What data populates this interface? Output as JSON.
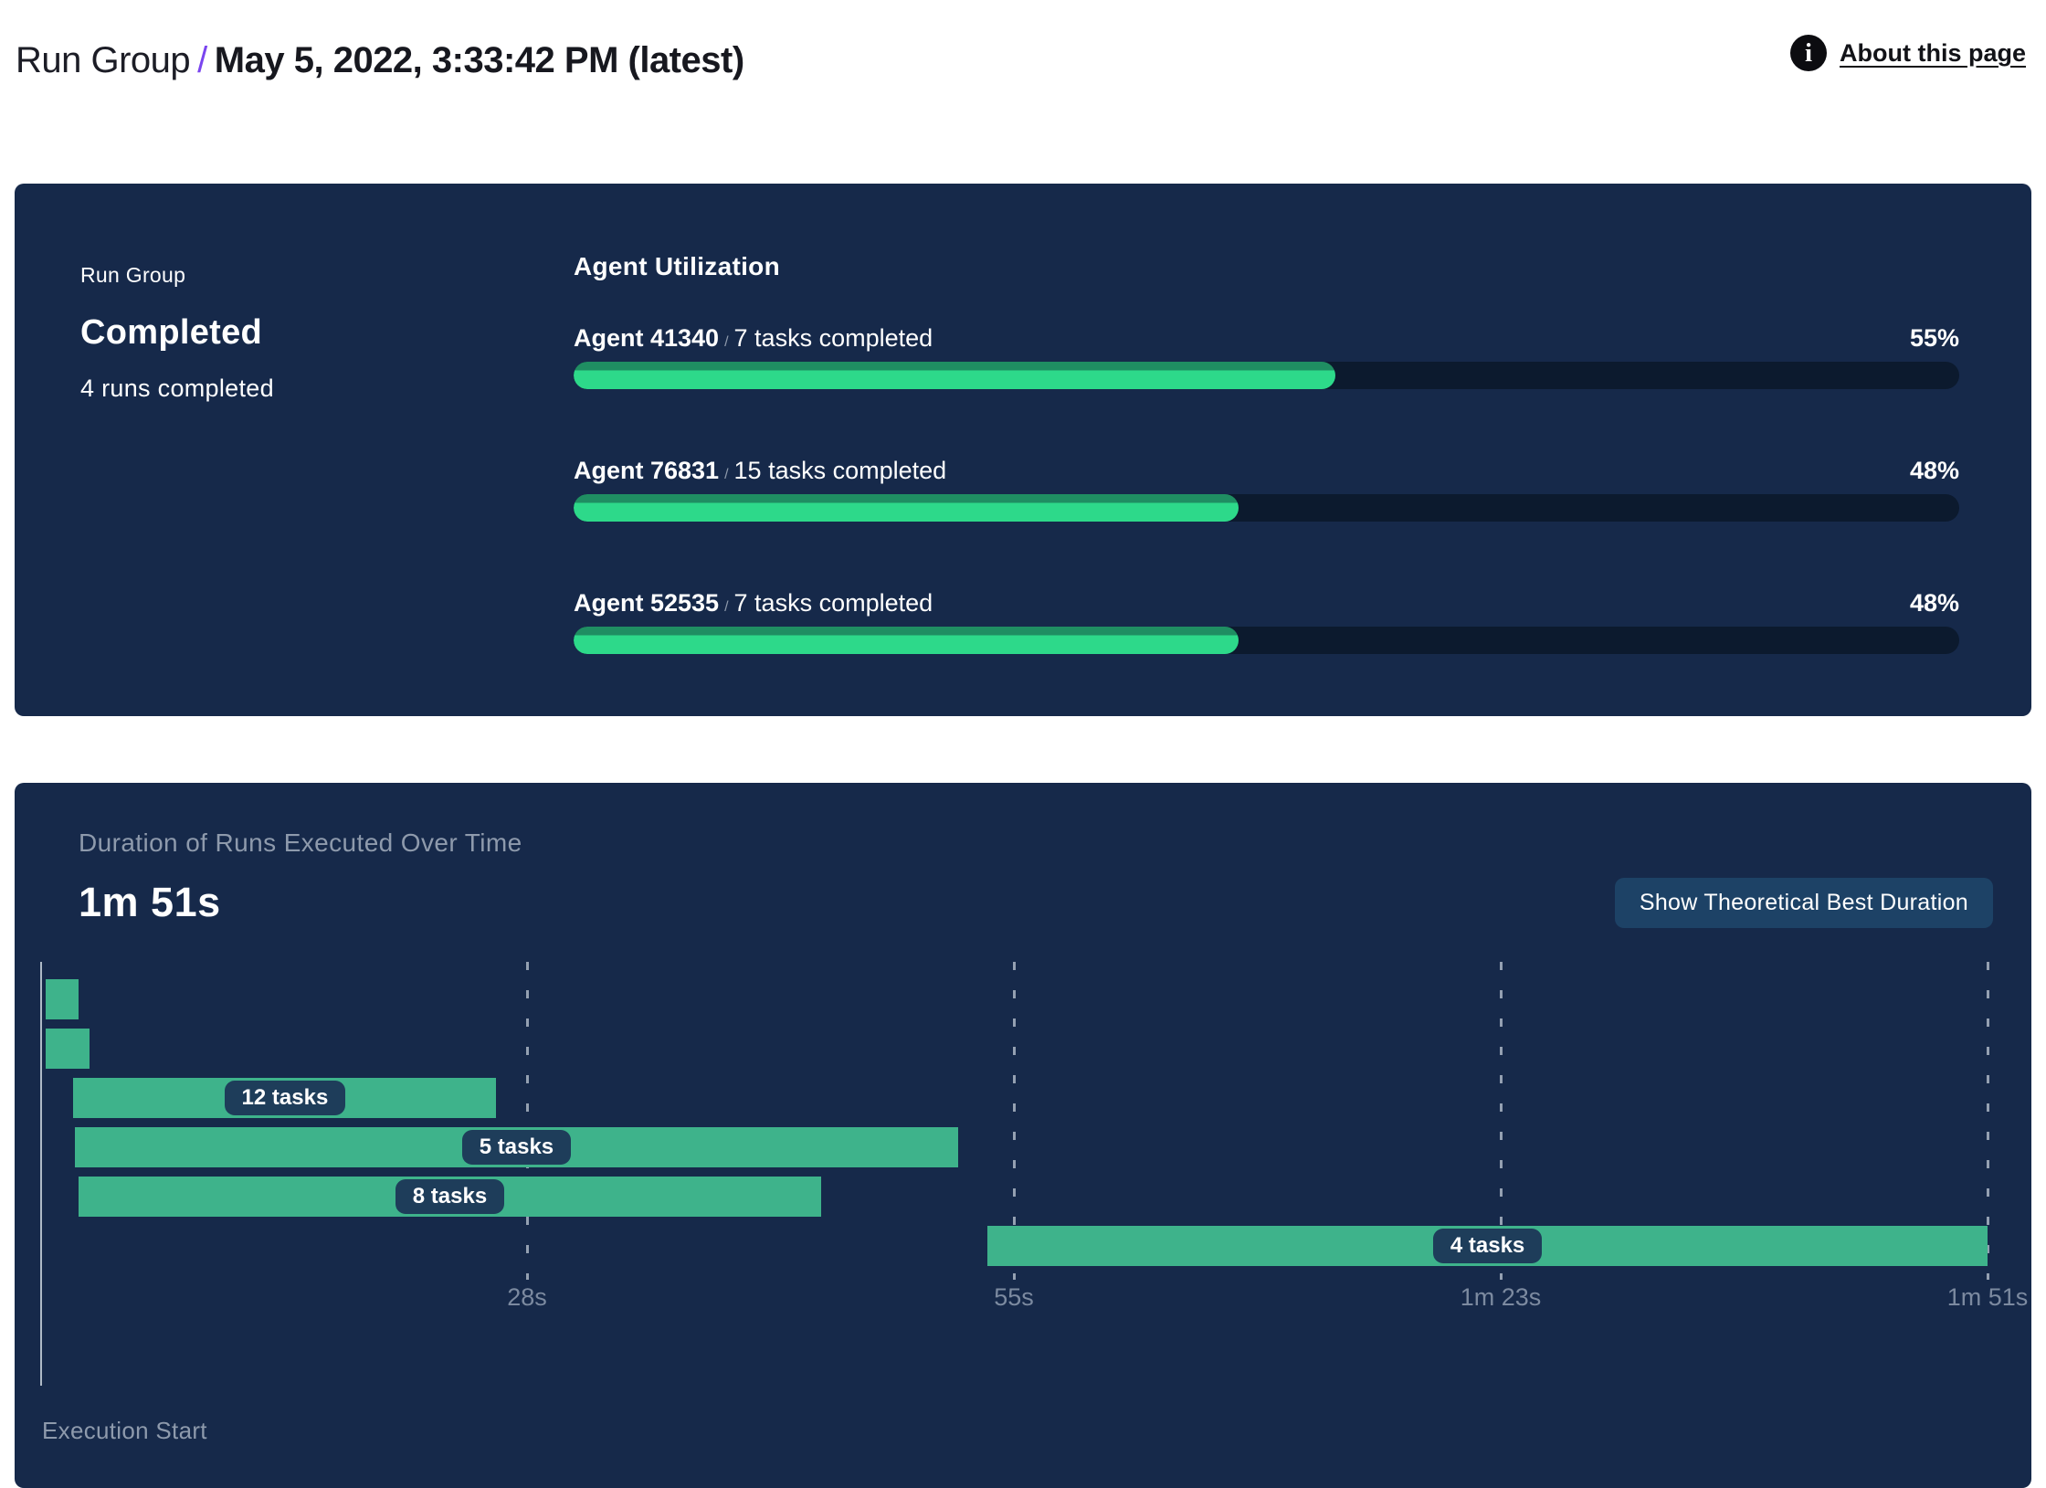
{
  "header": {
    "breadcrumb_root": "Run Group",
    "separator": "/",
    "title": "May 5, 2022, 3:33:42 PM (latest)",
    "info_icon_glyph": "i",
    "about_link": "About this page"
  },
  "summary_card": {
    "label": "Run Group",
    "status": "Completed",
    "runs_completed": "4 runs completed",
    "agent_utilization": {
      "title": "Agent Utilization",
      "separator": "/",
      "agents": [
        {
          "name": "Agent 41340",
          "tasks": "7 tasks completed",
          "percent": 55,
          "percent_label": "55%"
        },
        {
          "name": "Agent 76831",
          "tasks": "15 tasks completed",
          "percent": 48,
          "percent_label": "48%"
        },
        {
          "name": "Agent 52535",
          "tasks": "7 tasks completed",
          "percent": 48,
          "percent_label": "48%"
        }
      ]
    }
  },
  "duration_card": {
    "title": "Duration of Runs Executed Over Time",
    "total_duration": "1m 51s",
    "button_label": "Show Theoretical Best Duration",
    "execution_start_label": "Execution Start"
  },
  "chart_data": {
    "type": "gantt",
    "title": "Duration of Runs Executed Over Time",
    "total_duration_label": "1m 51s",
    "total_duration_s": 111,
    "x_axis_label": "Execution Start",
    "grid": "dashed-vertical",
    "x_ticks": [
      {
        "label": "28s",
        "t": 27.75
      },
      {
        "label": "55s",
        "t": 55.5
      },
      {
        "label": "1m 23s",
        "t": 83.25
      },
      {
        "label": "1m 51s",
        "t": 111
      }
    ],
    "bars": [
      {
        "start_s": 0.3,
        "end_s": 2.2,
        "label": null
      },
      {
        "start_s": 0.3,
        "end_s": 2.8,
        "label": null
      },
      {
        "start_s": 1.9,
        "end_s": 26.0,
        "label": "12 tasks"
      },
      {
        "start_s": 2.0,
        "end_s": 52.3,
        "label": "5 tasks"
      },
      {
        "start_s": 2.2,
        "end_s": 44.5,
        "label": "8 tasks"
      },
      {
        "start_s": 54.0,
        "end_s": 111.0,
        "label": "4 tasks"
      }
    ]
  },
  "colors": {
    "accent_purple": "#7a45ef",
    "card_bg": "#16294a",
    "progress_green": "#2dd98a",
    "progress_green_edge": "#1f8e62",
    "progress_track": "#0c1a2e",
    "gantt_green": "#3eb38b",
    "pill_bg": "#1e3d5a",
    "button_bg": "#1d4266",
    "muted_text": "#8e9aac",
    "tick_text": "#7c8aa0"
  }
}
